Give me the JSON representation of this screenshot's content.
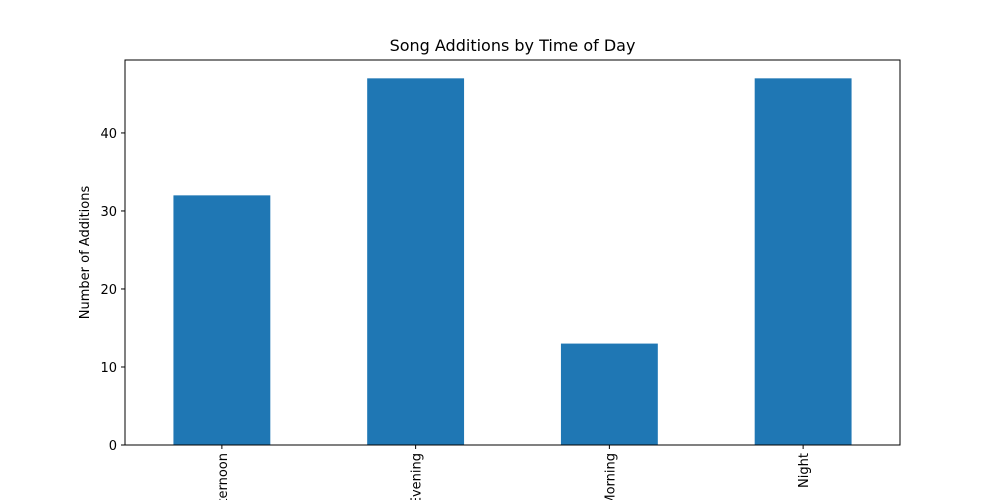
{
  "chart_data": {
    "type": "bar",
    "title": "Song Additions by Time of Day",
    "xlabel": "",
    "ylabel": "Number of Additions",
    "categories": [
      "Afternoon",
      "Evening",
      "Morning",
      "Night"
    ],
    "values": [
      32,
      47,
      13,
      47
    ],
    "ylim": [
      0,
      49.35
    ],
    "yticks": [
      0,
      10,
      20,
      30,
      40
    ],
    "bar_color": "#1f77b4",
    "grid": false,
    "legend": "none"
  }
}
